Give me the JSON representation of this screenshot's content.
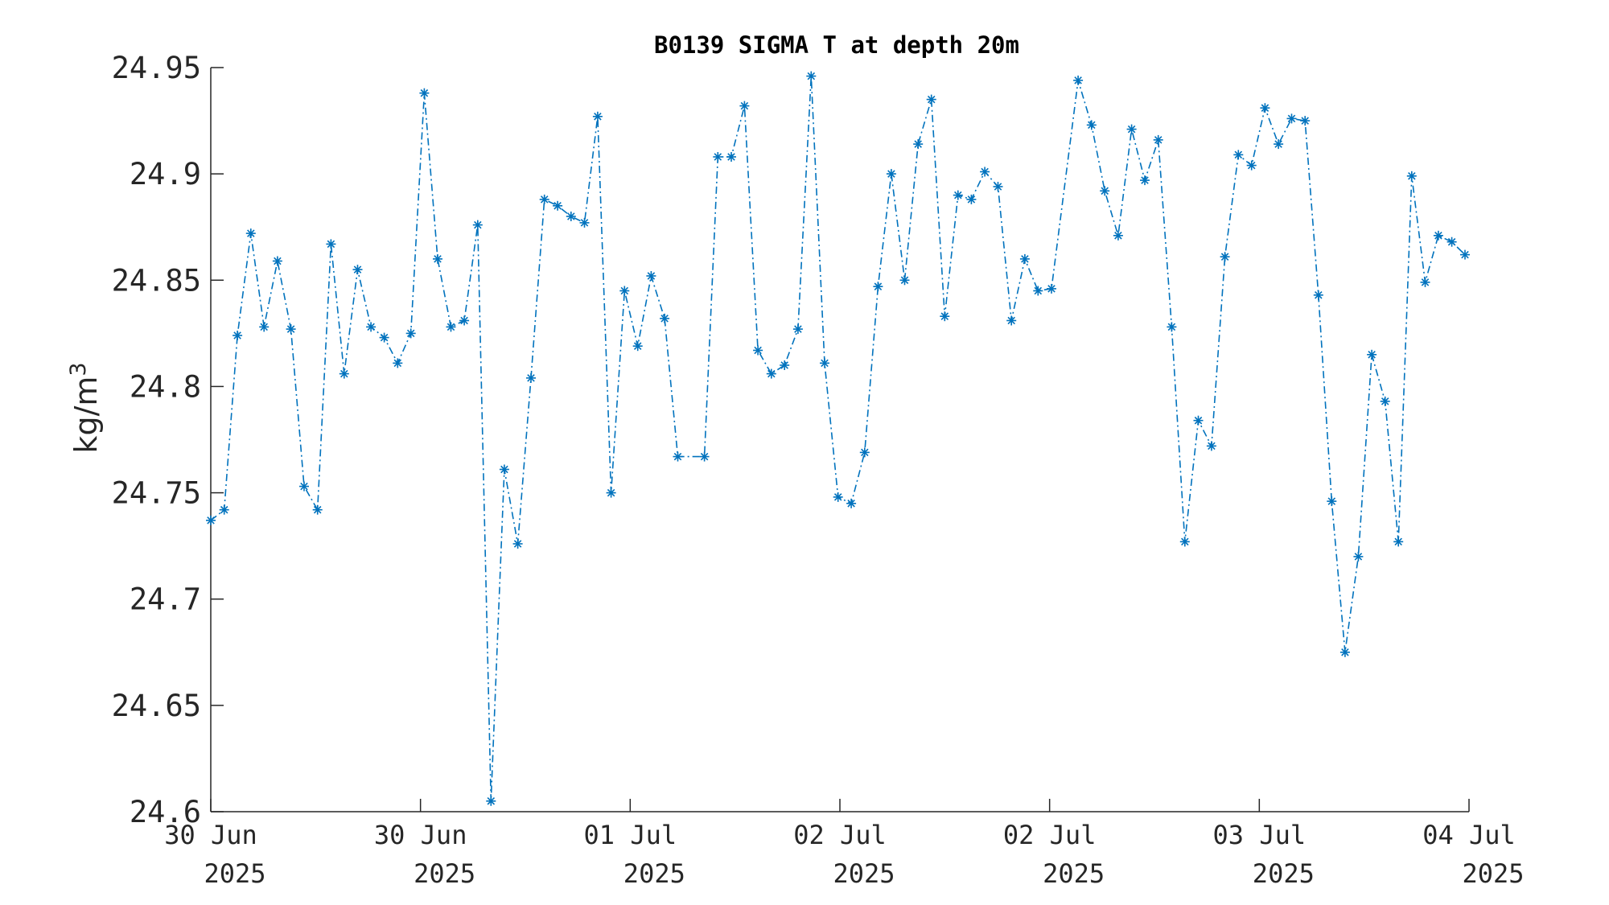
{
  "chart_data": {
    "type": "line",
    "title": "B0139 SIGMA T at depth 20m",
    "ylabel": "kg/m",
    "ylabel_superscript": "3",
    "xlabel": "",
    "ylim": [
      24.6,
      24.95
    ],
    "xlim": [
      0,
      6
    ],
    "yticks": [
      "24.6",
      "24.65",
      "24.7",
      "24.75",
      "24.8",
      "24.85",
      "24.9",
      "24.95"
    ],
    "xticks": [
      {
        "x": 0,
        "line1": "30 Jun",
        "line2": "2025"
      },
      {
        "x": 1,
        "line1": "30 Jun",
        "line2": "2025"
      },
      {
        "x": 2,
        "line1": "01 Jul",
        "line2": "2025"
      },
      {
        "x": 3,
        "line1": "02 Jul",
        "line2": "2025"
      },
      {
        "x": 4,
        "line1": "02 Jul",
        "line2": "2025"
      },
      {
        "x": 5,
        "line1": "03 Jul",
        "line2": "2025"
      },
      {
        "x": 6,
        "line1": "04 Jul",
        "line2": "2025"
      }
    ],
    "grid": false,
    "series": [
      {
        "color": "#0072BD",
        "line_style": "dash-dot",
        "marker": "asterisk",
        "points": [
          [
            0.0,
            24.737
          ],
          [
            0.064,
            24.742
          ],
          [
            0.127,
            24.824
          ],
          [
            0.191,
            24.872
          ],
          [
            0.254,
            24.828
          ],
          [
            0.318,
            24.859
          ],
          [
            0.382,
            24.827
          ],
          [
            0.445,
            24.753
          ],
          [
            0.509,
            24.742
          ],
          [
            0.573,
            24.867
          ],
          [
            0.636,
            24.806
          ],
          [
            0.7,
            24.855
          ],
          [
            0.764,
            24.828
          ],
          [
            0.827,
            24.823
          ],
          [
            0.891,
            24.811
          ],
          [
            0.954,
            24.825
          ],
          [
            1.018,
            24.938
          ],
          [
            1.082,
            24.86
          ],
          [
            1.145,
            24.828
          ],
          [
            1.209,
            24.831
          ],
          [
            1.273,
            24.876
          ],
          [
            1.336,
            24.605
          ],
          [
            1.4,
            24.761
          ],
          [
            1.464,
            24.726
          ],
          [
            1.527,
            24.804
          ],
          [
            1.591,
            24.888
          ],
          [
            1.654,
            24.885
          ],
          [
            1.718,
            24.88
          ],
          [
            1.782,
            24.877
          ],
          [
            1.845,
            24.927
          ],
          [
            1.909,
            24.75
          ],
          [
            1.973,
            24.845
          ],
          [
            2.036,
            24.819
          ],
          [
            2.1,
            24.852
          ],
          [
            2.164,
            24.832
          ],
          [
            2.227,
            24.767
          ],
          [
            2.354,
            24.767
          ],
          [
            2.418,
            24.908
          ],
          [
            2.482,
            24.908
          ],
          [
            2.545,
            24.932
          ],
          [
            2.609,
            24.817
          ],
          [
            2.673,
            24.806
          ],
          [
            2.736,
            24.81
          ],
          [
            2.8,
            24.827
          ],
          [
            2.863,
            24.946
          ],
          [
            2.927,
            24.811
          ],
          [
            2.991,
            24.748
          ],
          [
            3.054,
            24.745
          ],
          [
            3.118,
            24.769
          ],
          [
            3.182,
            24.847
          ],
          [
            3.245,
            24.9
          ],
          [
            3.309,
            24.85
          ],
          [
            3.373,
            24.914
          ],
          [
            3.436,
            24.935
          ],
          [
            3.5,
            24.833
          ],
          [
            3.563,
            24.89
          ],
          [
            3.627,
            24.888
          ],
          [
            3.691,
            24.901
          ],
          [
            3.754,
            24.894
          ],
          [
            3.818,
            24.831
          ],
          [
            3.882,
            24.86
          ],
          [
            3.945,
            24.845
          ],
          [
            4.009,
            24.846
          ],
          [
            4.136,
            24.944
          ],
          [
            4.2,
            24.923
          ],
          [
            4.263,
            24.892
          ],
          [
            4.327,
            24.871
          ],
          [
            4.391,
            24.921
          ],
          [
            4.454,
            24.897
          ],
          [
            4.518,
            24.916
          ],
          [
            4.582,
            24.828
          ],
          [
            4.645,
            24.727
          ],
          [
            4.709,
            24.784
          ],
          [
            4.772,
            24.772
          ],
          [
            4.836,
            24.861
          ],
          [
            4.9,
            24.909
          ],
          [
            4.963,
            24.904
          ],
          [
            5.027,
            24.931
          ],
          [
            5.091,
            24.914
          ],
          [
            5.154,
            24.926
          ],
          [
            5.218,
            24.925
          ],
          [
            5.282,
            24.843
          ],
          [
            5.345,
            24.746
          ],
          [
            5.409,
            24.675
          ],
          [
            5.472,
            24.72
          ],
          [
            5.536,
            24.815
          ],
          [
            5.6,
            24.793
          ],
          [
            5.663,
            24.727
          ],
          [
            5.727,
            24.899
          ],
          [
            5.791,
            24.849
          ],
          [
            5.854,
            24.871
          ],
          [
            5.918,
            24.868
          ],
          [
            5.981,
            24.862
          ]
        ]
      }
    ]
  }
}
